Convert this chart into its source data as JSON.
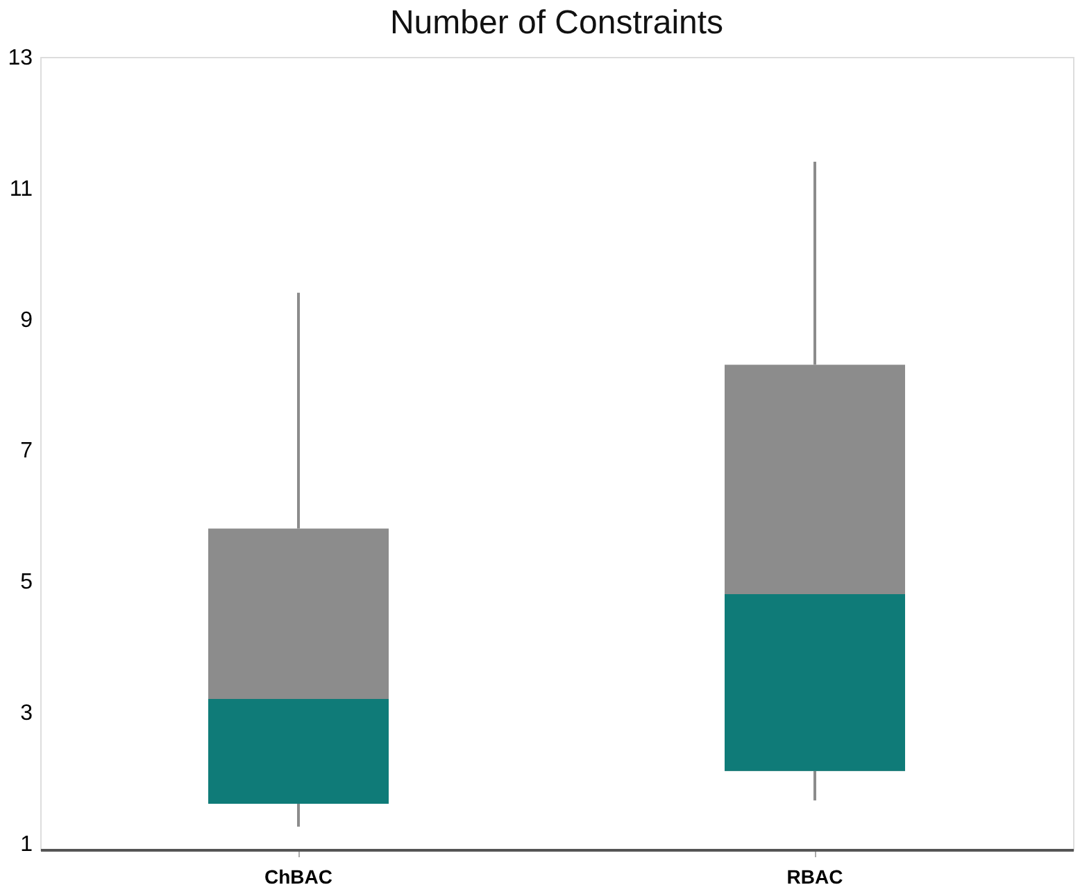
{
  "chart_data": {
    "type": "box",
    "title": "Number of Constraints",
    "categories": [
      "ChBAC",
      "RBAC"
    ],
    "series": [
      {
        "color": "#8c8c8c",
        "boxes": [
          {
            "low": 1.25,
            "q1": 1.6,
            "median": 3.2,
            "q3": 5.8,
            "high": 9.4
          },
          {
            "low": 1.65,
            "q1": 2.1,
            "median": 4.8,
            "q3": 8.3,
            "high": 11.4
          }
        ]
      }
    ],
    "colors": [
      "#0f7b78",
      "#0f7b78"
    ],
    "ylim": [
      0.9,
      13
    ],
    "yticks": [
      1,
      3,
      5,
      7,
      9,
      11,
      13
    ],
    "grid": false
  }
}
